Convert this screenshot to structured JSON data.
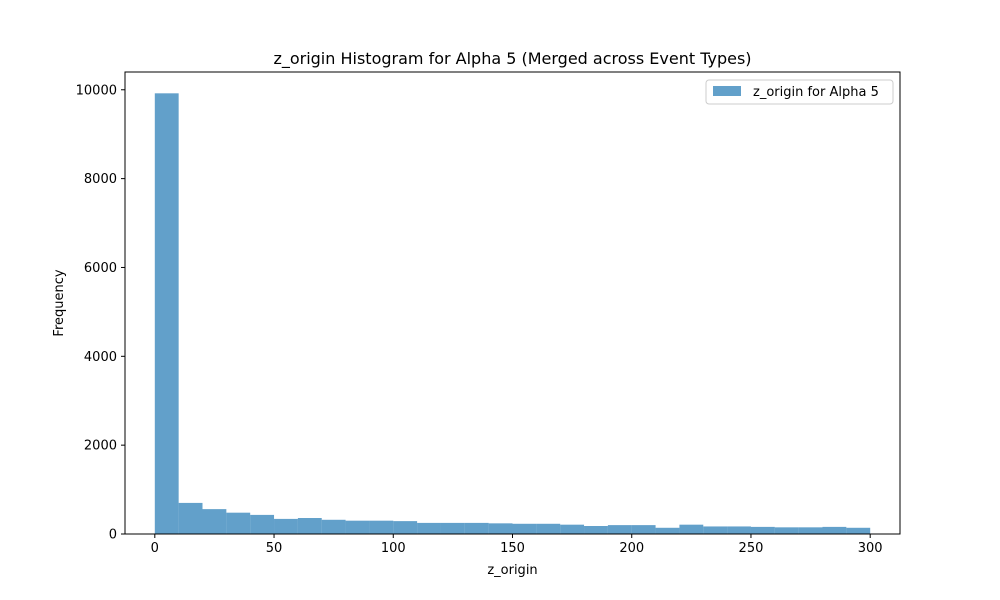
{
  "chart_data": {
    "type": "bar",
    "title": "z_origin Histogram for Alpha 5 (Merged across Event Types)",
    "xlabel": "z_origin",
    "ylabel": "Frequency",
    "xlim": [
      -12.5,
      312.5
    ],
    "ylim": [
      0,
      10400
    ],
    "xticks": [
      0,
      50,
      100,
      150,
      200,
      250,
      300
    ],
    "yticks": [
      0,
      2000,
      4000,
      6000,
      8000,
      10000
    ],
    "grid": false,
    "legend_position": "top-right",
    "series": [
      {
        "name": "z_origin for Alpha 5",
        "color": "#1f77b4",
        "opacity": 0.7,
        "bin_edges": [
          0,
          10,
          20,
          30,
          40,
          50,
          60,
          70,
          80,
          90,
          100,
          110,
          120,
          130,
          140,
          150,
          160,
          170,
          180,
          190,
          200,
          210,
          220,
          230,
          240,
          250,
          260,
          270,
          280,
          290,
          300
        ],
        "values": [
          9920,
          700,
          560,
          480,
          430,
          340,
          360,
          320,
          300,
          300,
          290,
          250,
          250,
          250,
          240,
          230,
          230,
          210,
          180,
          200,
          200,
          140,
          210,
          170,
          170,
          160,
          150,
          150,
          160,
          140
        ]
      }
    ]
  }
}
